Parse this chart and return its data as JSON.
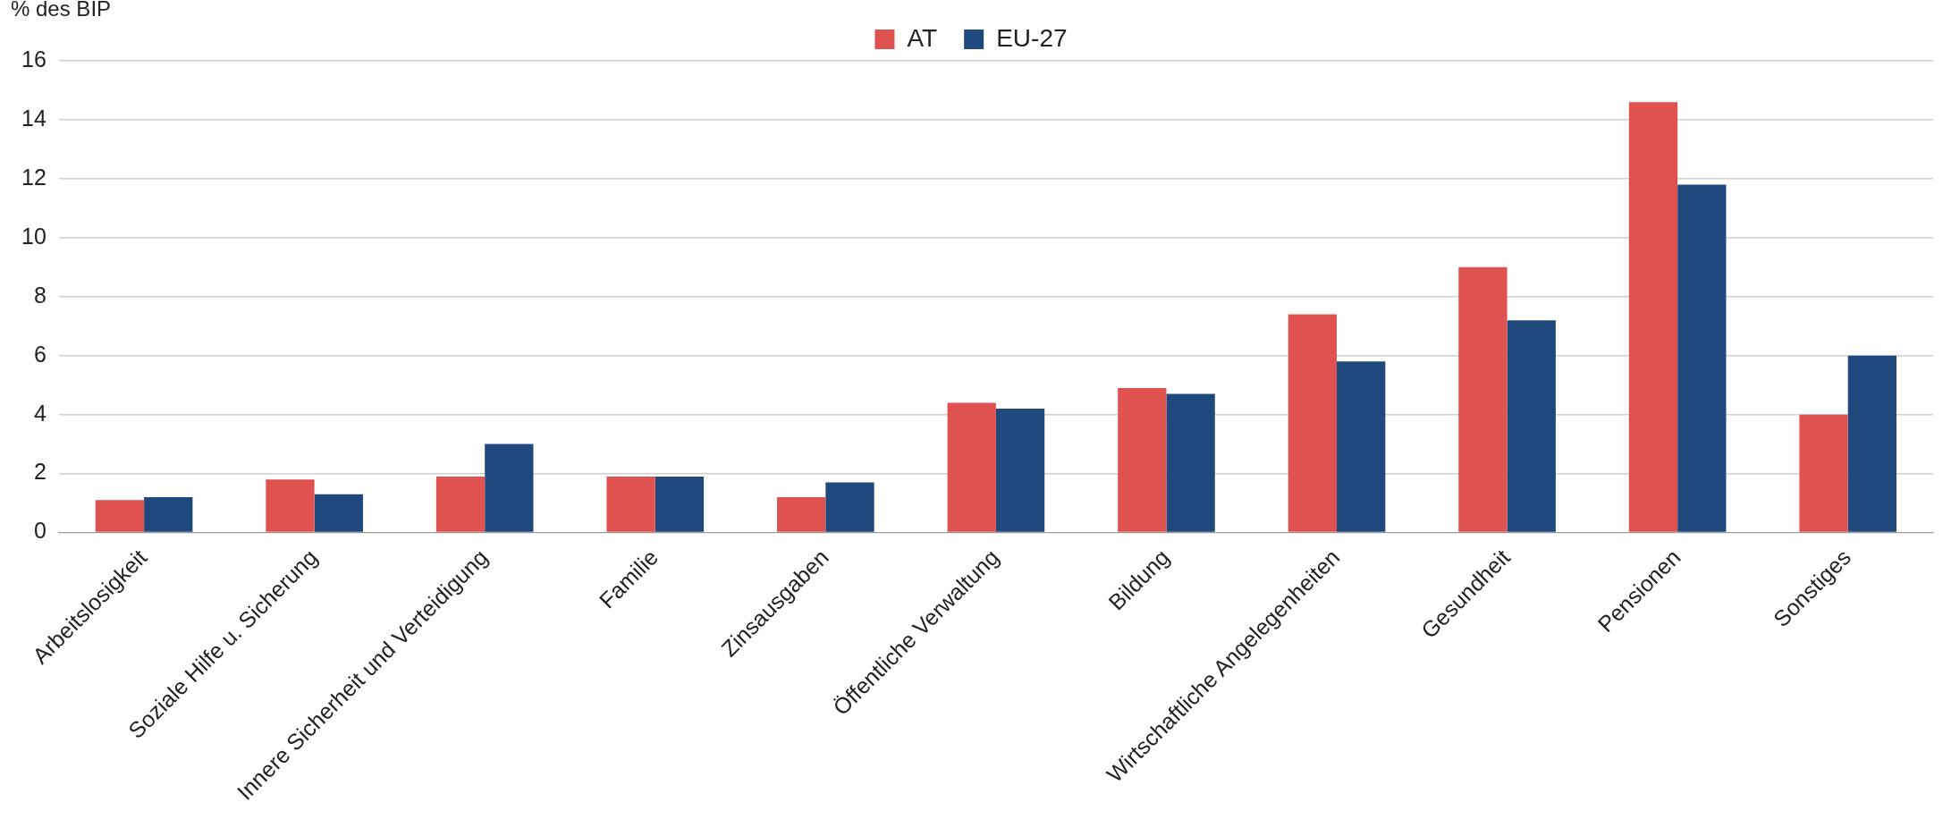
{
  "chart_data": {
    "type": "bar",
    "ylabel": "% des BIP",
    "categories": [
      "Arbeitslosigkeit",
      "Soziale Hilfe u. Sicherung",
      "Innere Sicherheit und Verteidigung",
      "Familie",
      "Zinsausgaben",
      "Öffentliche Verwaltung",
      "Bildung",
      "Wirtschaftliche Angelegenheiten",
      "Gesundheit",
      "Pensionen",
      "Sonstiges"
    ],
    "series": [
      {
        "name": "AT",
        "color": "#e05250",
        "values": [
          1.1,
          1.8,
          1.9,
          1.9,
          1.2,
          4.4,
          4.9,
          7.4,
          9.0,
          14.6,
          4.0
        ]
      },
      {
        "name": "EU-27",
        "color": "#1f497d",
        "values": [
          1.2,
          1.3,
          3.0,
          1.9,
          1.7,
          4.2,
          4.7,
          5.8,
          7.2,
          11.8,
          6.0
        ]
      }
    ],
    "ylim": [
      0,
      16
    ],
    "yticks": [
      0,
      2,
      4,
      6,
      8,
      10,
      12,
      14,
      16
    ],
    "grid": "y",
    "legend": "top"
  }
}
